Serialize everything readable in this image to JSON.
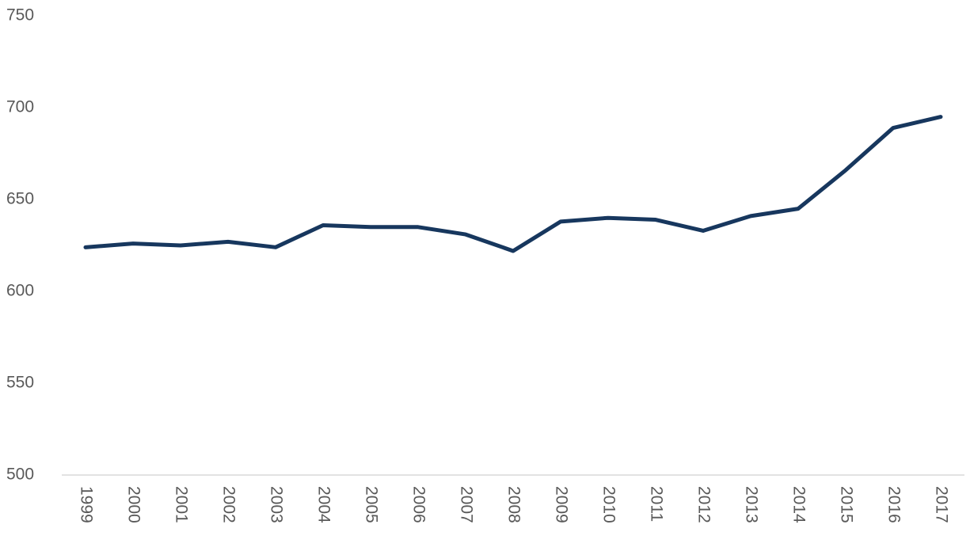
{
  "chart_data": {
    "type": "line",
    "categories": [
      "1999",
      "2000",
      "2001",
      "2002",
      "2003",
      "2004",
      "2005",
      "2006",
      "2007",
      "2008",
      "2009",
      "2010",
      "2011",
      "2012",
      "2013",
      "2014",
      "2015",
      "2016",
      "2017"
    ],
    "values": [
      624,
      626,
      625,
      627,
      624,
      636,
      635,
      635,
      631,
      622,
      638,
      640,
      639,
      633,
      641,
      645,
      666,
      689,
      695
    ],
    "color": "#17375e",
    "ylim": [
      500,
      750
    ],
    "yticks": [
      500,
      550,
      600,
      650,
      700,
      750
    ],
    "grid": false
  }
}
